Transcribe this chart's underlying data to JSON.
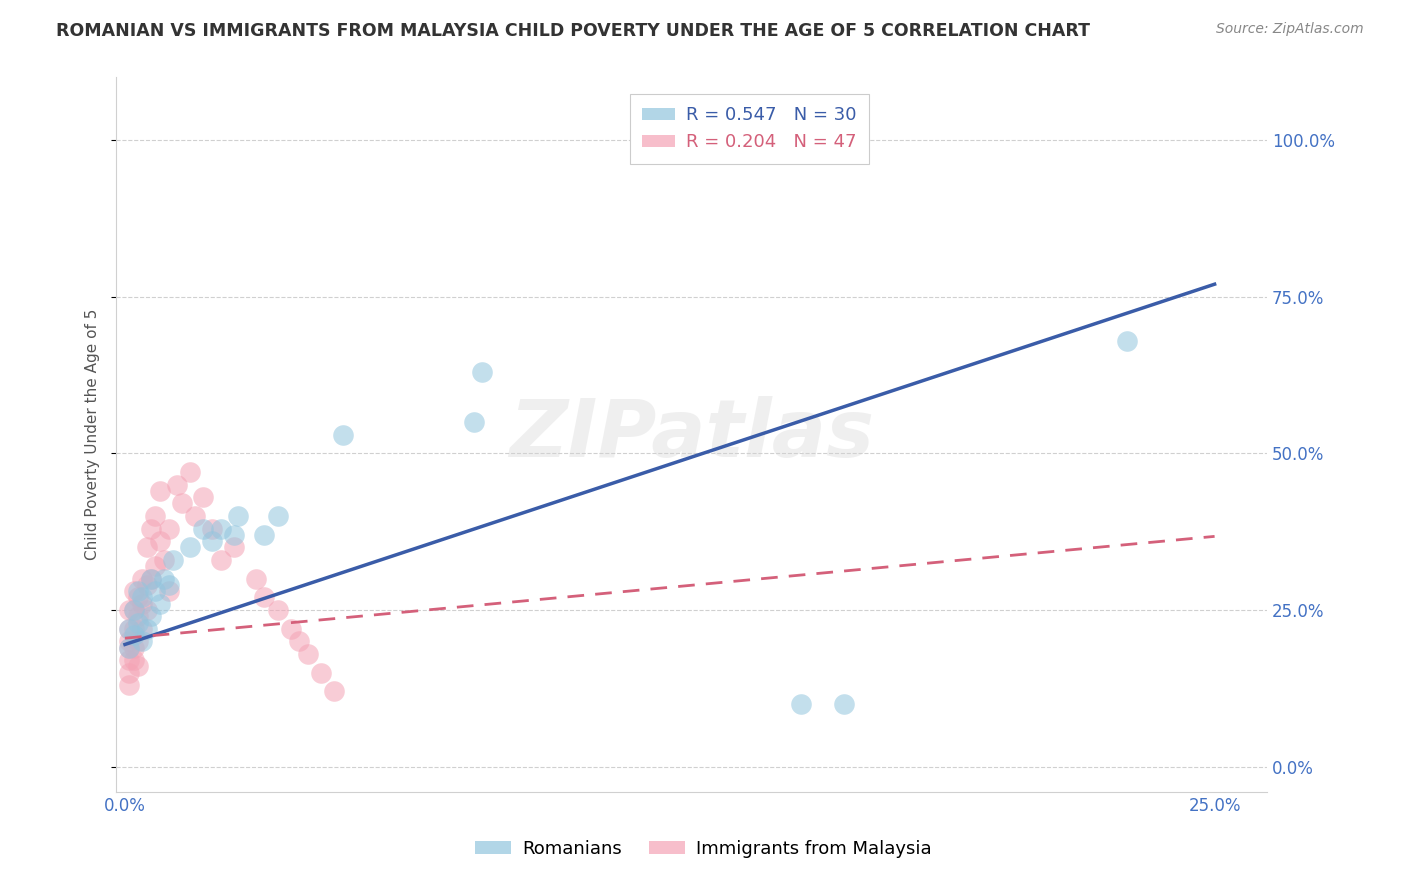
{
  "title": "ROMANIAN VS IMMIGRANTS FROM MALAYSIA CHILD POVERTY UNDER THE AGE OF 5 CORRELATION CHART",
  "source": "Source: ZipAtlas.com",
  "ylabel": "Child Poverty Under the Age of 5",
  "legend_entries": [
    {
      "label": "R = 0.547   N = 30",
      "color": "#92c5de"
    },
    {
      "label": "R = 0.204   N = 47",
      "color": "#f4a3b5"
    }
  ],
  "legend_labels_bottom": [
    "Romanians",
    "Immigrants from Malaysia"
  ],
  "watermark": "ZIPatlas",
  "blue_color": "#92c5de",
  "pink_color": "#f4a3b5",
  "trendline_blue": "#3a5ca8",
  "trendline_pink": "#d4607a",
  "title_color": "#333333",
  "source_color": "#888888",
  "ylabel_color": "#555555",
  "tick_color": "#4472c4",
  "grid_color": "#d0d0d0",
  "xlim": [
    -0.002,
    0.262
  ],
  "ylim": [
    -0.04,
    1.1
  ],
  "x_ticks": [
    0.0,
    0.25
  ],
  "y_ticks": [
    0.0,
    0.25,
    0.5,
    0.75,
    1.0
  ],
  "romanians_x": [
    0.001,
    0.001,
    0.002,
    0.002,
    0.003,
    0.003,
    0.004,
    0.004,
    0.005,
    0.006,
    0.006,
    0.007,
    0.008,
    0.009,
    0.01,
    0.011,
    0.015,
    0.018,
    0.02,
    0.022,
    0.025,
    0.026,
    0.032,
    0.035,
    0.05,
    0.08,
    0.082,
    0.155,
    0.165,
    0.23
  ],
  "romanians_y": [
    0.19,
    0.22,
    0.21,
    0.25,
    0.23,
    0.28,
    0.2,
    0.27,
    0.22,
    0.24,
    0.3,
    0.28,
    0.26,
    0.3,
    0.29,
    0.33,
    0.35,
    0.38,
    0.36,
    0.38,
    0.37,
    0.4,
    0.37,
    0.4,
    0.53,
    0.55,
    0.63,
    0.1,
    0.1,
    0.68
  ],
  "malaysia_x": [
    0.001,
    0.001,
    0.001,
    0.001,
    0.001,
    0.001,
    0.001,
    0.002,
    0.002,
    0.002,
    0.002,
    0.002,
    0.003,
    0.003,
    0.003,
    0.003,
    0.004,
    0.004,
    0.004,
    0.005,
    0.005,
    0.005,
    0.006,
    0.006,
    0.007,
    0.007,
    0.008,
    0.008,
    0.009,
    0.01,
    0.01,
    0.012,
    0.013,
    0.015,
    0.016,
    0.018,
    0.02,
    0.022,
    0.025,
    0.03,
    0.032,
    0.035,
    0.038,
    0.04,
    0.042,
    0.045,
    0.048
  ],
  "malaysia_y": [
    0.19,
    0.22,
    0.2,
    0.17,
    0.15,
    0.13,
    0.25,
    0.22,
    0.19,
    0.25,
    0.28,
    0.17,
    0.2,
    0.24,
    0.27,
    0.16,
    0.22,
    0.26,
    0.3,
    0.25,
    0.29,
    0.35,
    0.3,
    0.38,
    0.32,
    0.4,
    0.36,
    0.44,
    0.33,
    0.38,
    0.28,
    0.45,
    0.42,
    0.47,
    0.4,
    0.43,
    0.38,
    0.33,
    0.35,
    0.3,
    0.27,
    0.25,
    0.22,
    0.2,
    0.18,
    0.15,
    0.12
  ],
  "trendline_blue_params": [
    2.3,
    0.195
  ],
  "trendline_pink_params": [
    0.65,
    0.205
  ]
}
